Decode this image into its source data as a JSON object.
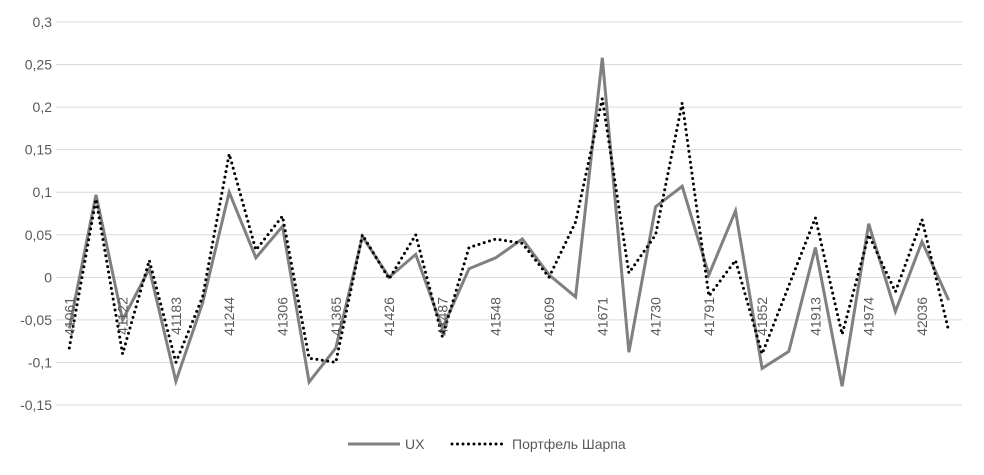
{
  "chart_data": {
    "type": "line",
    "title": "",
    "xlabel": "",
    "ylabel": "",
    "ylim": [
      -0.15,
      0.3
    ],
    "y_ticks": [
      0.3,
      0.25,
      0.2,
      0.15,
      0.1,
      0.05,
      0,
      -0.05,
      -0.1,
      -0.15
    ],
    "y_tick_labels": [
      "0,3",
      "0,25",
      "0,2",
      "0,15",
      "0,1",
      "0,05",
      "0",
      "-0,05",
      "-0,1",
      "-0,15"
    ],
    "x_tick_labels": [
      "41061",
      "41122",
      "41183",
      "41244",
      "41306",
      "41365",
      "41426",
      "41487",
      "41548",
      "41609",
      "41671",
      "41730",
      "41791",
      "41852",
      "41913",
      "41974",
      "42036"
    ],
    "x_tick_every": 2,
    "grid": true,
    "legend_position": "bottom",
    "series": [
      {
        "name": "UX",
        "style": "solid",
        "color": "#808080",
        "values": [
          -0.06,
          0.097,
          -0.05,
          0.01,
          -0.122,
          -0.03,
          0.1,
          0.023,
          0.06,
          -0.123,
          -0.083,
          0.048,
          0.0,
          0.027,
          -0.06,
          0.01,
          0.023,
          0.045,
          0.003,
          -0.023,
          0.258,
          -0.088,
          0.083,
          0.107,
          0.003,
          0.078,
          -0.107,
          -0.087,
          0.035,
          -0.128,
          0.063,
          -0.04,
          0.042,
          -0.027
        ]
      },
      {
        "name": "Портфель Шарпа",
        "style": "dotted",
        "color": "#000000",
        "values": [
          -0.083,
          0.092,
          -0.09,
          0.02,
          -0.1,
          -0.023,
          0.145,
          0.032,
          0.072,
          -0.095,
          -0.1,
          0.05,
          -0.002,
          0.05,
          -0.07,
          0.035,
          0.045,
          0.04,
          0.0,
          0.065,
          0.21,
          0.005,
          0.05,
          0.205,
          -0.022,
          0.02,
          -0.09,
          -0.01,
          0.07,
          -0.067,
          0.05,
          -0.017,
          0.068,
          -0.063
        ]
      }
    ]
  }
}
